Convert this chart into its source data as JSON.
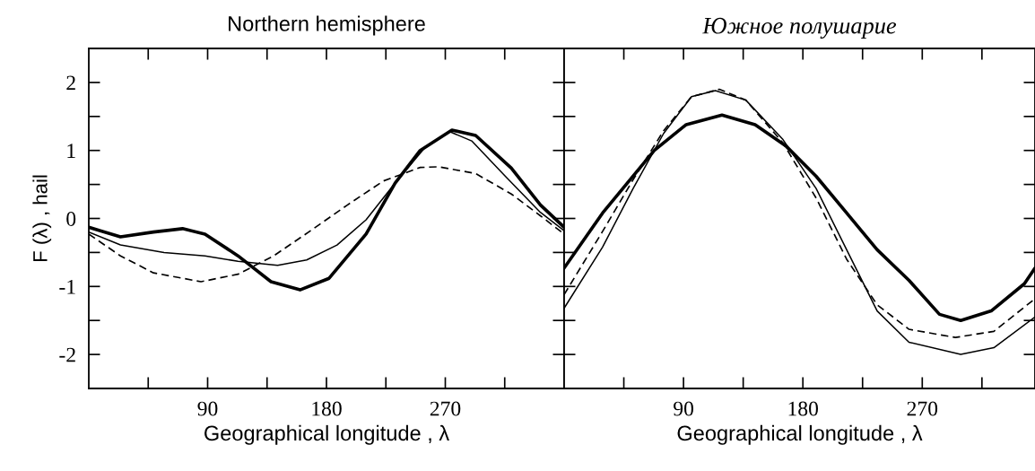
{
  "chart_data": [
    {
      "type": "line",
      "title": "Northern hemisphere",
      "xlabel": "Geographical longitude , λ",
      "ylabel": "F (λ) , hail",
      "xlim": [
        0,
        360
      ],
      "ylim": [
        -2.5,
        2.5
      ],
      "xticks": [
        {
          "value": 45,
          "label": null
        },
        90,
        {
          "value": 135,
          "label": null
        },
        180,
        {
          "value": 225,
          "label": null
        },
        270,
        {
          "value": 315,
          "label": null
        }
      ],
      "yticks": [
        {
          "value": -2,
          "label": "-2"
        },
        {
          "value": -1.5,
          "label": null
        },
        {
          "value": -1,
          "label": "-1"
        },
        {
          "value": -0.5,
          "label": null
        },
        0,
        {
          "value": 0.5,
          "label": null
        },
        1,
        {
          "value": 1.5,
          "label": null
        },
        2
      ],
      "grid": false,
      "legend": false,
      "marker": "none",
      "series": [
        {
          "color": "#000000",
          "line_style": "solid",
          "x": [
            0,
            24,
            49,
            71,
            88,
            113,
            138,
            160,
            182,
            210,
            232,
            251,
            275,
            293,
            320,
            342,
            360
          ],
          "values": [
            -0.13,
            -0.27,
            -0.2,
            -0.15,
            -0.23,
            -0.55,
            -0.93,
            -1.05,
            -0.88,
            -0.23,
            0.52,
            1.0,
            1.3,
            1.22,
            0.74,
            0.2,
            -0.13
          ]
        },
        {
          "color": "#000000",
          "line_style": "solid",
          "x": [
            0,
            24,
            57,
            88,
            113,
            143,
            165,
            188,
            210,
            232,
            254,
            273,
            290,
            315,
            342,
            360
          ],
          "values": [
            -0.2,
            -0.39,
            -0.5,
            -0.55,
            -0.63,
            -0.69,
            -0.61,
            -0.39,
            -0.02,
            0.52,
            1.03,
            1.28,
            1.14,
            0.63,
            0.09,
            -0.18
          ]
        },
        {
          "color": "#000000",
          "line_style": "dashed",
          "x": [
            0,
            24,
            49,
            85,
            113,
            140,
            168,
            196,
            223,
            251,
            265,
            293,
            320,
            342,
            360
          ],
          "values": [
            -0.23,
            -0.55,
            -0.8,
            -0.93,
            -0.82,
            -0.55,
            -0.18,
            0.2,
            0.55,
            0.75,
            0.76,
            0.66,
            0.36,
            0.04,
            -0.23
          ]
        }
      ]
    },
    {
      "type": "line",
      "title": "Южное полушарие",
      "xlabel": "Geographical longitude , λ",
      "xlim": [
        0,
        355
      ],
      "ylim": [
        -2.5,
        2.5
      ],
      "tick_labels": "x",
      "xticks": [
        {
          "value": 45,
          "label": null
        },
        90,
        {
          "value": 135,
          "label": null
        },
        180,
        {
          "value": 225,
          "label": null
        },
        270,
        {
          "value": 315,
          "label": null
        }
      ],
      "yticks": [
        {
          "value": -2,
          "label": null
        },
        {
          "value": -1.5,
          "label": null
        },
        {
          "value": -1,
          "label": null
        },
        {
          "value": -0.5,
          "label": null
        },
        {
          "value": 0,
          "label": null
        },
        {
          "value": 0.5,
          "label": null
        },
        {
          "value": 1,
          "label": null
        },
        {
          "value": 1.5,
          "label": null
        },
        {
          "value": 2,
          "label": null
        }
      ],
      "grid": false,
      "legend": false,
      "marker": "none",
      "series": [
        {
          "color": "#000000",
          "line_style": "solid",
          "x": [
            0,
            29,
            68,
            92,
            119,
            144,
            167,
            190,
            213,
            236,
            260,
            283,
            299,
            322,
            347,
            355
          ],
          "values": [
            -0.73,
            0.08,
            1.0,
            1.38,
            1.52,
            1.38,
            1.07,
            0.62,
            0.08,
            -0.46,
            -0.91,
            -1.41,
            -1.5,
            -1.36,
            -0.96,
            -0.73
          ]
        },
        {
          "color": "#000000",
          "line_style": "solid",
          "x": [
            0,
            29,
            52,
            75,
            96,
            114,
            137,
            165,
            190,
            213,
            236,
            260,
            299,
            324,
            355
          ],
          "values": [
            -1.32,
            -0.42,
            0.44,
            1.25,
            1.79,
            1.88,
            1.74,
            1.16,
            0.44,
            -0.46,
            -1.36,
            -1.82,
            -2.0,
            -1.9,
            -1.45
          ]
        },
        {
          "color": "#000000",
          "line_style": "dashed",
          "x": [
            0,
            29,
            52,
            75,
            96,
            117,
            137,
            165,
            190,
            213,
            236,
            260,
            295,
            324,
            355
          ],
          "values": [
            -1.12,
            -0.19,
            0.57,
            1.29,
            1.79,
            1.9,
            1.74,
            1.11,
            0.3,
            -0.6,
            -1.27,
            -1.63,
            -1.75,
            -1.66,
            -1.18
          ]
        }
      ]
    }
  ]
}
